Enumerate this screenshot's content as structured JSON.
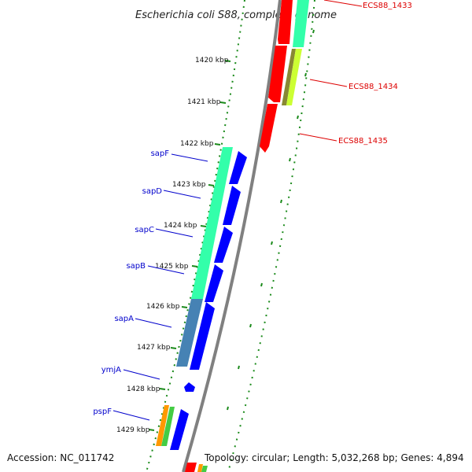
{
  "title": "Escherichia coli S88, complete genome",
  "accession": "Accession: NC_011742",
  "summary": "Topology: circular; Length: 5,032,268 bp; Genes: 4,894",
  "colors": {
    "backbone": "#808080",
    "cds_forward": "#0000ff",
    "cds_reverse": "#ff0000",
    "ruler_dots": "#1a8a1a",
    "ruler_ticks": "#1a8a1a",
    "label_blue": "#0000cc",
    "label_red": "#dd0000",
    "cog_teal": "#33ffaa",
    "cog_steel": "#4682b4",
    "cog_yellow": "#ccff33",
    "cog_olive": "#888833",
    "cog_orange": "#ff9900",
    "cog_green": "#44cc44"
  },
  "kbp_labels": [
    "1420 kbp",
    "1421 kbp",
    "1422 kbp",
    "1423 kbp",
    "1424 kbp",
    "1425 kbp",
    "1426 kbp",
    "1427 kbp",
    "1428 kbp",
    "1429 kbp"
  ],
  "forward_genes": [
    "sapF",
    "sapD",
    "sapC",
    "sapB",
    "sapA",
    "ymjA",
    "pspF"
  ],
  "reverse_genes": [
    "ECS88_1433",
    "ECS88_1434",
    "ECS88_1435"
  ]
}
